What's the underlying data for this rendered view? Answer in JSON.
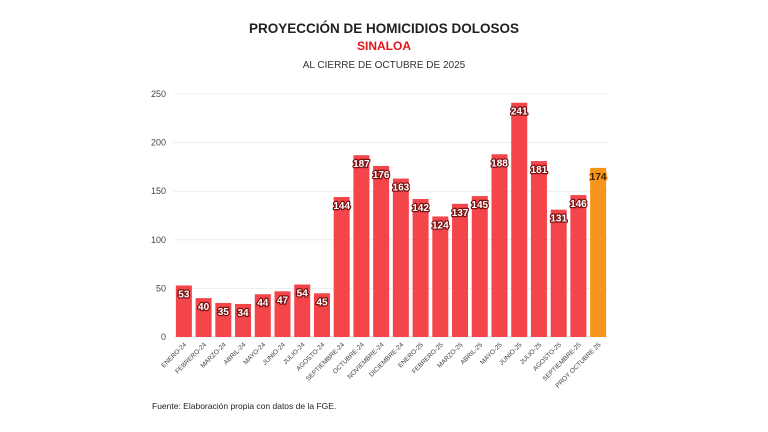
{
  "chart_data": {
    "type": "bar",
    "title": "PROYECCIÓN DE HOMICIDIOS DOLOSOS",
    "subtitle": "SINALOA",
    "subtitle2": "AL CIERRE DE OCTUBRE DE 2025",
    "categories": [
      "ENERO-24",
      "FEBRERO-24",
      "MARZO-24",
      "ABRIL-24",
      "MAYO-24",
      "JUNIO-24",
      "JULIO-24",
      "AGOSTO-24",
      "SEPTIEMBRE-24",
      "OCTUBRE-24",
      "NOVIEMBRE-24",
      "DICIEMBRE-24",
      "ENERO-25",
      "FEBRERO-25",
      "MARZO-25",
      "ABRIL-25",
      "MAYO-25",
      "JUNIO-25",
      "JULIO-25",
      "AGOSTO-25",
      "SEPTIEMBRE-25",
      "PROY OCTUBRE 25"
    ],
    "values": [
      53,
      40,
      35,
      34,
      44,
      47,
      54,
      45,
      144,
      187,
      176,
      163,
      142,
      124,
      137,
      145,
      188,
      241,
      181,
      131,
      146,
      174
    ],
    "ylim": [
      0,
      250
    ],
    "yticks": [
      0,
      50,
      100,
      150,
      200,
      250
    ],
    "grid": true,
    "colors": {
      "actual": "#f4454a",
      "projection": "#f7941d"
    },
    "xlabel": "",
    "ylabel": "",
    "source": "Fuente: Elaboración propia con datos de la FGE."
  }
}
